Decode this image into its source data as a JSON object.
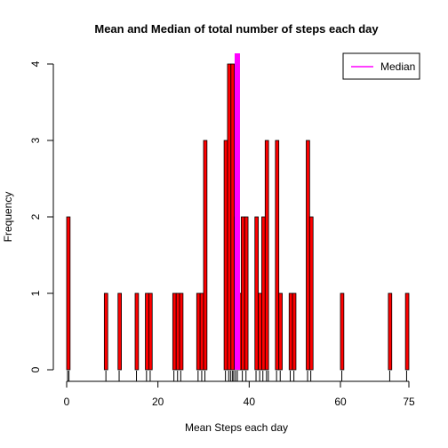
{
  "chart_data": {
    "type": "bar",
    "title": "Mean and Median of total number of steps each day",
    "xlabel": "Mean Steps each day",
    "ylabel": "Frequency",
    "xlim": [
      0,
      75
    ],
    "ylim": [
      0,
      4
    ],
    "xticks": [
      "0",
      "20",
      "40",
      "60"
    ],
    "x_last_tick": "75",
    "yticks": [
      "0",
      "1",
      "2",
      "3",
      "4"
    ],
    "bin_width": 0.75,
    "bins": [
      {
        "x": 0.0,
        "count": 2
      },
      {
        "x": 8.25,
        "count": 1
      },
      {
        "x": 11.25,
        "count": 1
      },
      {
        "x": 15.0,
        "count": 1
      },
      {
        "x": 17.25,
        "count": 1
      },
      {
        "x": 18.0,
        "count": 1
      },
      {
        "x": 23.25,
        "count": 1
      },
      {
        "x": 24.0,
        "count": 1
      },
      {
        "x": 24.75,
        "count": 1
      },
      {
        "x": 28.5,
        "count": 1
      },
      {
        "x": 29.25,
        "count": 1
      },
      {
        "x": 30.0,
        "count": 3
      },
      {
        "x": 34.5,
        "count": 3
      },
      {
        "x": 35.25,
        "count": 4
      },
      {
        "x": 36.0,
        "count": 4
      },
      {
        "x": 36.75,
        "count": 2
      },
      {
        "x": 37.5,
        "count": 1
      },
      {
        "x": 38.25,
        "count": 2
      },
      {
        "x": 39.0,
        "count": 2
      },
      {
        "x": 41.25,
        "count": 2
      },
      {
        "x": 42.0,
        "count": 1
      },
      {
        "x": 42.75,
        "count": 2
      },
      {
        "x": 43.5,
        "count": 3
      },
      {
        "x": 45.75,
        "count": 3
      },
      {
        "x": 46.5,
        "count": 1
      },
      {
        "x": 48.75,
        "count": 1
      },
      {
        "x": 49.5,
        "count": 1
      },
      {
        "x": 52.5,
        "count": 3
      },
      {
        "x": 53.25,
        "count": 2
      },
      {
        "x": 60.0,
        "count": 1
      },
      {
        "x": 70.5,
        "count": 1
      },
      {
        "x": 74.25,
        "count": 1
      }
    ],
    "rug": [
      0.2,
      0.5,
      8.6,
      11.5,
      15.3,
      17.5,
      18.3,
      23.5,
      24.3,
      25.0,
      28.8,
      29.6,
      30.3,
      34.8,
      35.5,
      35.9,
      36.3,
      36.6,
      37.0,
      37.4,
      38.5,
      39.3,
      41.5,
      42.3,
      43.0,
      43.8,
      44.2,
      46.0,
      46.8,
      49.0,
      49.8,
      52.8,
      53.5,
      60.3,
      70.8,
      74.5
    ],
    "median": 37.4,
    "colors": {
      "bar_fill": "#ff0000",
      "bar_stroke": "#000000",
      "median_line": "#ff00ff"
    },
    "legend": {
      "position": "top-right",
      "entries": [
        {
          "label": "Median",
          "color": "#ff00ff"
        }
      ]
    }
  }
}
